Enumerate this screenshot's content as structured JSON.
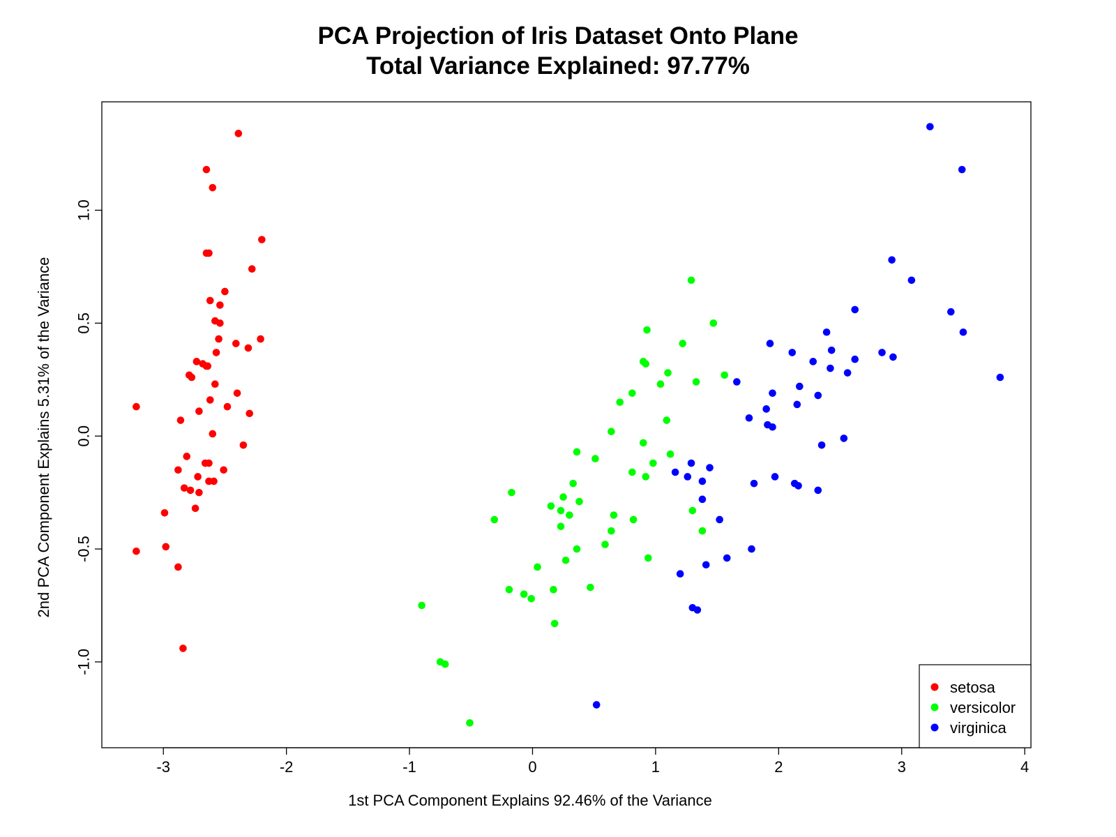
{
  "chart_data": {
    "type": "scatter",
    "title": "PCA Projection of Iris Dataset Onto Plane",
    "subtitle": "Total Variance Explained: 97.77%",
    "xlabel": "1st PCA Component Explains 92.46% of the Variance",
    "ylabel": "2nd PCA Component Explains 5.31% of the Variance",
    "xlim": [
      -3.5,
      4.05
    ],
    "ylim": [
      -1.38,
      1.48
    ],
    "xticks": [
      -3,
      -2,
      -1,
      0,
      1,
      2,
      3,
      4
    ],
    "xtick_labels": [
      "-3",
      "-2",
      "-1",
      "0",
      "1",
      "2",
      "3",
      "4"
    ],
    "yticks": [
      -1.0,
      -0.5,
      0.0,
      0.5,
      1.0
    ],
    "ytick_labels": [
      "-1.0",
      "-0.5",
      "0.0",
      "0.5",
      "1.0"
    ],
    "grid": false,
    "legend_position": "bottom-right",
    "series": [
      {
        "name": "setosa",
        "color": "#ff0000",
        "points": [
          [
            -2.39,
            1.34
          ],
          [
            -2.65,
            1.18
          ],
          [
            -2.6,
            1.1
          ],
          [
            -2.2,
            0.87
          ],
          [
            -2.65,
            0.81
          ],
          [
            -2.63,
            0.81
          ],
          [
            -2.28,
            0.74
          ],
          [
            -2.5,
            0.64
          ],
          [
            -2.62,
            0.6
          ],
          [
            -2.54,
            0.58
          ],
          [
            -2.58,
            0.51
          ],
          [
            -2.54,
            0.5
          ],
          [
            -2.55,
            0.43
          ],
          [
            -2.21,
            0.43
          ],
          [
            -2.41,
            0.41
          ],
          [
            -2.31,
            0.39
          ],
          [
            -2.57,
            0.37
          ],
          [
            -2.73,
            0.33
          ],
          [
            -2.68,
            0.32
          ],
          [
            -2.65,
            0.31
          ],
          [
            -2.64,
            0.31
          ],
          [
            -2.79,
            0.27
          ],
          [
            -2.77,
            0.26
          ],
          [
            -2.58,
            0.23
          ],
          [
            -2.4,
            0.19
          ],
          [
            -2.62,
            0.16
          ],
          [
            -3.22,
            0.13
          ],
          [
            -2.48,
            0.13
          ],
          [
            -2.71,
            0.11
          ],
          [
            -2.3,
            0.1
          ],
          [
            -2.86,
            0.07
          ],
          [
            -2.6,
            0.01
          ],
          [
            -2.35,
            -0.04
          ],
          [
            -2.81,
            -0.09
          ],
          [
            -2.66,
            -0.12
          ],
          [
            -2.63,
            -0.12
          ],
          [
            -2.88,
            -0.15
          ],
          [
            -2.51,
            -0.15
          ],
          [
            -2.63,
            -0.2
          ],
          [
            -2.59,
            -0.2
          ],
          [
            -2.72,
            -0.18
          ],
          [
            -2.83,
            -0.23
          ],
          [
            -2.78,
            -0.24
          ],
          [
            -2.71,
            -0.25
          ],
          [
            -2.74,
            -0.32
          ],
          [
            -2.99,
            -0.34
          ],
          [
            -2.98,
            -0.49
          ],
          [
            -3.22,
            -0.51
          ],
          [
            -2.88,
            -0.58
          ],
          [
            -2.84,
            -0.94
          ]
        ]
      },
      {
        "name": "versicolor",
        "color": "#00ff00",
        "points": [
          [
            1.29,
            0.69
          ],
          [
            1.47,
            0.5
          ],
          [
            0.93,
            0.47
          ],
          [
            1.22,
            0.41
          ],
          [
            0.9,
            0.33
          ],
          [
            0.92,
            0.32
          ],
          [
            1.1,
            0.28
          ],
          [
            1.56,
            0.27
          ],
          [
            1.33,
            0.24
          ],
          [
            1.04,
            0.23
          ],
          [
            0.81,
            0.19
          ],
          [
            0.71,
            0.15
          ],
          [
            1.09,
            0.07
          ],
          [
            0.64,
            0.02
          ],
          [
            0.9,
            -0.03
          ],
          [
            0.36,
            -0.07
          ],
          [
            1.12,
            -0.08
          ],
          [
            0.51,
            -0.1
          ],
          [
            0.98,
            -0.12
          ],
          [
            0.81,
            -0.16
          ],
          [
            0.92,
            -0.18
          ],
          [
            0.33,
            -0.21
          ],
          [
            -0.17,
            -0.25
          ],
          [
            0.25,
            -0.27
          ],
          [
            0.38,
            -0.29
          ],
          [
            0.15,
            -0.31
          ],
          [
            1.3,
            -0.33
          ],
          [
            0.23,
            -0.33
          ],
          [
            0.3,
            -0.35
          ],
          [
            0.66,
            -0.35
          ],
          [
            -0.31,
            -0.37
          ],
          [
            0.82,
            -0.37
          ],
          [
            0.23,
            -0.4
          ],
          [
            0.64,
            -0.42
          ],
          [
            1.38,
            -0.42
          ],
          [
            0.59,
            -0.48
          ],
          [
            0.36,
            -0.5
          ],
          [
            0.94,
            -0.54
          ],
          [
            0.27,
            -0.55
          ],
          [
            0.04,
            -0.58
          ],
          [
            0.47,
            -0.67
          ],
          [
            -0.19,
            -0.68
          ],
          [
            0.17,
            -0.68
          ],
          [
            -0.07,
            -0.7
          ],
          [
            -0.01,
            -0.72
          ],
          [
            -0.9,
            -0.75
          ],
          [
            0.18,
            -0.83
          ],
          [
            -0.75,
            -1.0
          ],
          [
            -0.71,
            -1.01
          ],
          [
            -0.51,
            -1.27
          ]
        ]
      },
      {
        "name": "virginica",
        "color": "#0000ff",
        "points": [
          [
            3.23,
            1.37
          ],
          [
            3.49,
            1.18
          ],
          [
            2.92,
            0.78
          ],
          [
            3.08,
            0.69
          ],
          [
            2.62,
            0.56
          ],
          [
            3.4,
            0.55
          ],
          [
            2.39,
            0.46
          ],
          [
            3.5,
            0.46
          ],
          [
            1.93,
            0.41
          ],
          [
            2.43,
            0.38
          ],
          [
            2.84,
            0.37
          ],
          [
            2.11,
            0.37
          ],
          [
            2.93,
            0.35
          ],
          [
            2.62,
            0.34
          ],
          [
            2.28,
            0.33
          ],
          [
            2.42,
            0.3
          ],
          [
            2.56,
            0.28
          ],
          [
            3.8,
            0.26
          ],
          [
            1.66,
            0.24
          ],
          [
            2.17,
            0.22
          ],
          [
            1.95,
            0.19
          ],
          [
            2.32,
            0.18
          ],
          [
            2.15,
            0.14
          ],
          [
            1.9,
            0.12
          ],
          [
            1.76,
            0.08
          ],
          [
            1.91,
            0.05
          ],
          [
            1.95,
            0.04
          ],
          [
            2.53,
            -0.01
          ],
          [
            2.35,
            -0.04
          ],
          [
            1.29,
            -0.12
          ],
          [
            1.44,
            -0.14
          ],
          [
            1.16,
            -0.16
          ],
          [
            1.26,
            -0.18
          ],
          [
            1.97,
            -0.18
          ],
          [
            1.38,
            -0.2
          ],
          [
            2.13,
            -0.21
          ],
          [
            1.8,
            -0.21
          ],
          [
            2.16,
            -0.22
          ],
          [
            2.32,
            -0.24
          ],
          [
            1.38,
            -0.28
          ],
          [
            1.52,
            -0.37
          ],
          [
            1.78,
            -0.5
          ],
          [
            1.58,
            -0.54
          ],
          [
            1.41,
            -0.57
          ],
          [
            1.2,
            -0.61
          ],
          [
            1.3,
            -0.76
          ],
          [
            1.34,
            -0.77
          ],
          [
            0.52,
            -1.19
          ]
        ]
      }
    ]
  }
}
